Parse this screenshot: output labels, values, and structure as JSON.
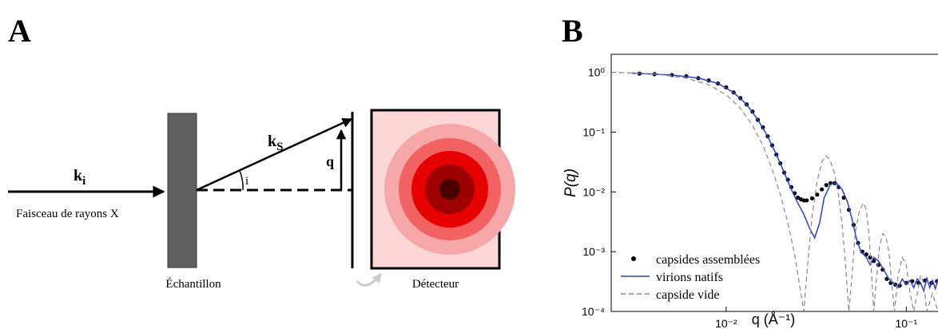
{
  "panel_a": {
    "label": "A",
    "incident": {
      "main": "k",
      "sub": "i"
    },
    "beam_caption": "Faisceau de rayons X",
    "sample_caption": "Échantillon",
    "scattered": {
      "main": "k",
      "sub": "S"
    },
    "angle": "i",
    "q": "q",
    "detector_caption": "Détecteur"
  },
  "chart_data": {
    "type": "line",
    "panel_label": "B",
    "ylabel": "P(q)",
    "xlabel": "q (Å⁻¹)",
    "log_x": true,
    "log_y": true,
    "legend": "lower left",
    "xlim": [
      0.0023,
      0.15
    ],
    "ylim": [
      0.0001,
      2
    ],
    "xticks": [
      {
        "value": 0.01,
        "label": "10⁻²"
      },
      {
        "value": 0.1,
        "label": "10⁻¹"
      }
    ],
    "yticks": [
      {
        "value": 0.0001,
        "label": "10⁻⁴"
      },
      {
        "value": 0.001,
        "label": "10⁻³"
      },
      {
        "value": 0.01,
        "label": "10⁻²"
      },
      {
        "value": 0.1,
        "label": "10⁻¹"
      },
      {
        "value": 1,
        "label": "10⁰"
      }
    ],
    "series": [
      {
        "name": "capsides assemblées",
        "color": "#000000",
        "style": "markers",
        "x": [
          0.0033,
          0.004,
          0.005,
          0.006,
          0.007,
          0.008,
          0.009,
          0.01,
          0.011,
          0.012,
          0.013,
          0.014,
          0.015,
          0.016,
          0.017,
          0.018,
          0.019,
          0.02,
          0.021,
          0.022,
          0.023,
          0.024,
          0.025,
          0.026,
          0.027,
          0.028,
          0.03,
          0.032,
          0.034,
          0.036,
          0.038,
          0.04,
          0.042,
          0.045,
          0.048,
          0.051,
          0.054,
          0.057,
          0.06,
          0.063,
          0.066,
          0.07,
          0.074,
          0.078,
          0.082,
          0.087,
          0.092,
          0.1,
          0.108,
          0.117,
          0.127,
          0.138,
          0.148
        ],
        "values": [
          0.95,
          0.93,
          0.9,
          0.86,
          0.8,
          0.73,
          0.65,
          0.56,
          0.46,
          0.37,
          0.29,
          0.22,
          0.16,
          0.12,
          0.085,
          0.06,
          0.042,
          0.03,
          0.021,
          0.016,
          0.012,
          0.0095,
          0.008,
          0.0075,
          0.0072,
          0.0072,
          0.0078,
          0.009,
          0.011,
          0.013,
          0.014,
          0.014,
          0.012,
          0.008,
          0.005,
          0.0028,
          0.0014,
          0.001,
          0.0009,
          0.0008,
          0.0007,
          0.0006,
          0.0005,
          0.00035,
          0.0003,
          0.00028,
          0.00027,
          0.0003,
          0.00032,
          0.0003,
          0.00033,
          0.0003,
          0.00032
        ]
      },
      {
        "name": "virions natifs",
        "color": "#2a3fd4",
        "style": "line",
        "x": [
          0.003,
          0.005,
          0.007,
          0.009,
          0.011,
          0.013,
          0.015,
          0.017,
          0.019,
          0.021,
          0.023,
          0.025,
          0.027,
          0.029,
          0.031,
          0.033,
          0.035,
          0.038,
          0.041,
          0.044,
          0.047,
          0.05,
          0.053,
          0.056,
          0.06,
          0.063,
          0.066,
          0.07,
          0.075,
          0.08,
          0.085,
          0.09,
          0.095,
          0.1,
          0.105,
          0.11,
          0.115,
          0.12,
          0.125,
          0.13,
          0.135,
          0.14,
          0.145,
          0.15
        ],
        "values": [
          0.97,
          0.9,
          0.8,
          0.65,
          0.46,
          0.29,
          0.16,
          0.085,
          0.042,
          0.021,
          0.011,
          0.0065,
          0.0042,
          0.0025,
          0.0017,
          0.003,
          0.008,
          0.0135,
          0.014,
          0.011,
          0.007,
          0.0035,
          0.0016,
          0.001,
          0.0008,
          0.0006,
          0.0008,
          0.0007,
          0.0005,
          0.00035,
          0.0003,
          0.00025,
          0.00035,
          0.00028,
          0.00033,
          0.00025,
          0.00035,
          0.0003,
          0.00022,
          0.00036,
          0.00025,
          0.00033,
          0.00024,
          0.00035
        ]
      },
      {
        "name": "capside vide",
        "color": "#888888",
        "style": "dashed",
        "x": [
          0.0023,
          0.004,
          0.006,
          0.008,
          0.01,
          0.012,
          0.014,
          0.016,
          0.018,
          0.02,
          0.022,
          0.024,
          0.026,
          0.027,
          0.028,
          0.03,
          0.032,
          0.034,
          0.036,
          0.038,
          0.04,
          0.042,
          0.044,
          0.046,
          0.048,
          0.05,
          0.052,
          0.055,
          0.058,
          0.06,
          0.062,
          0.064,
          0.066,
          0.068,
          0.071,
          0.074,
          0.077,
          0.08,
          0.083,
          0.086,
          0.09,
          0.095,
          0.1,
          0.105,
          0.11,
          0.115,
          0.12,
          0.125,
          0.13,
          0.14,
          0.15
        ],
        "values": [
          1,
          0.94,
          0.8,
          0.62,
          0.42,
          0.25,
          0.13,
          0.06,
          0.024,
          0.009,
          0.003,
          0.0009,
          0.0002,
          0.0001,
          0.0004,
          0.004,
          0.015,
          0.032,
          0.04,
          0.032,
          0.02,
          0.009,
          0.003,
          0.0006,
          0.0001,
          0.0004,
          0.002,
          0.005,
          0.0065,
          0.005,
          0.002,
          0.0005,
          0.0001,
          0.0003,
          0.0012,
          0.002,
          0.0018,
          0.001,
          0.0003,
          0.0001,
          0.0004,
          0.0008,
          0.0006,
          0.0002,
          0.0001,
          0.0002,
          0.0004,
          0.0003,
          0.0001,
          0.0002,
          0.0001
        ]
      }
    ]
  }
}
